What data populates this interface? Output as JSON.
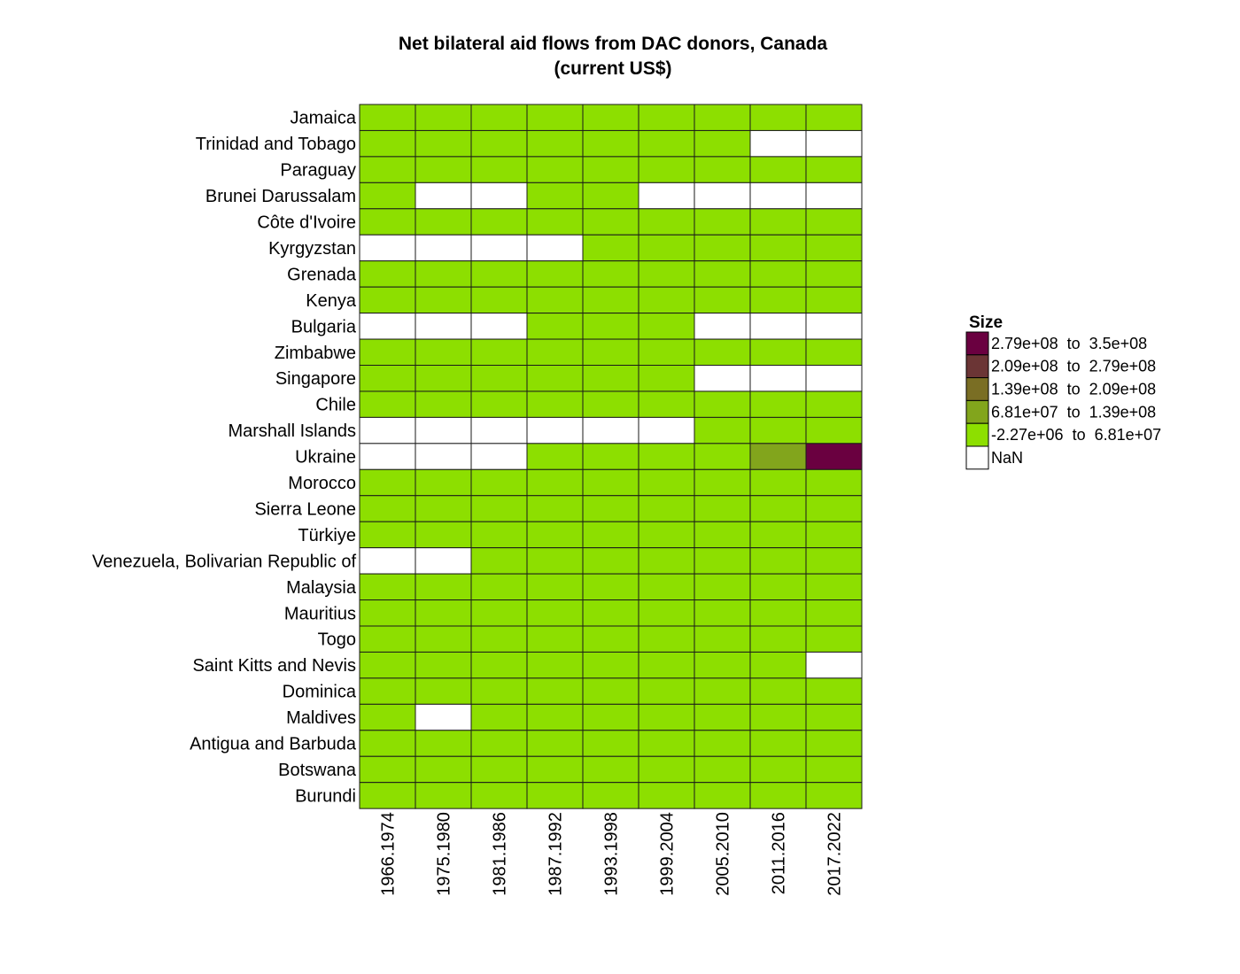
{
  "chart_data": {
    "type": "heatmap",
    "title_lines": [
      "Net bilateral aid flows from DAC donors, Canada",
      "(current US$)"
    ],
    "xlabel": "",
    "ylabel": "",
    "x_categories": [
      "1966.1974",
      "1975.1980",
      "1981.1986",
      "1987.1992",
      "1993.1998",
      "1999.2004",
      "2005.2010",
      "2011.2016",
      "2017.2022"
    ],
    "y_categories": [
      "Jamaica",
      "Trinidad and Tobago",
      "Paraguay",
      "Brunei Darussalam",
      "Côte d'Ivoire",
      "Kyrgyzstan",
      "Grenada",
      "Kenya",
      "Bulgaria",
      "Zimbabwe",
      "Singapore",
      "Chile",
      "Marshall Islands",
      "Ukraine",
      "Morocco",
      "Sierra Leone",
      "Türkiye",
      "Venezuela, Bolivarian Republic of",
      "Malaysia",
      "Mauritius",
      "Togo",
      "Saint Kitts and Nevis",
      "Dominica",
      "Maldives",
      "Antigua and Barbuda",
      "Botswana",
      "Burundi"
    ],
    "cell_bins": [
      [
        0,
        0,
        0,
        0,
        0,
        0,
        0,
        0,
        0
      ],
      [
        0,
        0,
        0,
        0,
        0,
        0,
        0,
        -1,
        -1
      ],
      [
        0,
        0,
        0,
        0,
        0,
        0,
        0,
        0,
        0
      ],
      [
        0,
        -1,
        -1,
        0,
        0,
        -1,
        -1,
        -1,
        -1
      ],
      [
        0,
        0,
        0,
        0,
        0,
        0,
        0,
        0,
        0
      ],
      [
        -1,
        -1,
        -1,
        -1,
        0,
        0,
        0,
        0,
        0
      ],
      [
        0,
        0,
        0,
        0,
        0,
        0,
        0,
        0,
        0
      ],
      [
        0,
        0,
        0,
        0,
        0,
        0,
        0,
        0,
        0
      ],
      [
        -1,
        -1,
        -1,
        0,
        0,
        0,
        -1,
        -1,
        -1
      ],
      [
        0,
        0,
        0,
        0,
        0,
        0,
        0,
        0,
        0
      ],
      [
        0,
        0,
        0,
        0,
        0,
        0,
        -1,
        -1,
        -1
      ],
      [
        0,
        0,
        0,
        0,
        0,
        0,
        0,
        0,
        0
      ],
      [
        -1,
        -1,
        -1,
        -1,
        -1,
        -1,
        0,
        0,
        0
      ],
      [
        -1,
        -1,
        -1,
        0,
        0,
        0,
        0,
        1,
        4
      ],
      [
        0,
        0,
        0,
        0,
        0,
        0,
        0,
        0,
        0
      ],
      [
        0,
        0,
        0,
        0,
        0,
        0,
        0,
        0,
        0
      ],
      [
        0,
        0,
        0,
        0,
        0,
        0,
        0,
        0,
        0
      ],
      [
        -1,
        -1,
        0,
        0,
        0,
        0,
        0,
        0,
        0
      ],
      [
        0,
        0,
        0,
        0,
        0,
        0,
        0,
        0,
        0
      ],
      [
        0,
        0,
        0,
        0,
        0,
        0,
        0,
        0,
        0
      ],
      [
        0,
        0,
        0,
        0,
        0,
        0,
        0,
        0,
        0
      ],
      [
        0,
        0,
        0,
        0,
        0,
        0,
        0,
        0,
        -1
      ],
      [
        0,
        0,
        0,
        0,
        0,
        0,
        0,
        0,
        0
      ],
      [
        0,
        -1,
        0,
        0,
        0,
        0,
        0,
        0,
        0
      ],
      [
        0,
        0,
        0,
        0,
        0,
        0,
        0,
        0,
        0
      ],
      [
        0,
        0,
        0,
        0,
        0,
        0,
        0,
        0,
        0
      ],
      [
        0,
        0,
        0,
        0,
        0,
        0,
        0,
        0,
        0
      ]
    ],
    "legend": {
      "title": "Size",
      "placement": "right",
      "bins": [
        {
          "label": "2.79e+08  to  3.5e+08",
          "color": "#6a0040"
        },
        {
          "label": "2.09e+08  to  2.79e+08",
          "color": "#6b3535"
        },
        {
          "label": "1.39e+08  to  2.09e+08",
          "color": "#7a6e24"
        },
        {
          "label": "6.81e+07  to  1.39e+08",
          "color": "#82a51c"
        },
        {
          "label": "-2.27e+06  to  6.81e+07",
          "color": "#8ddf00"
        }
      ],
      "nan": {
        "label": "NaN",
        "color": "#ffffff"
      }
    },
    "bin_color_index": {
      "0": 4,
      "1": 3,
      "2": 2,
      "3": 1,
      "4": 0
    },
    "grid": true
  }
}
